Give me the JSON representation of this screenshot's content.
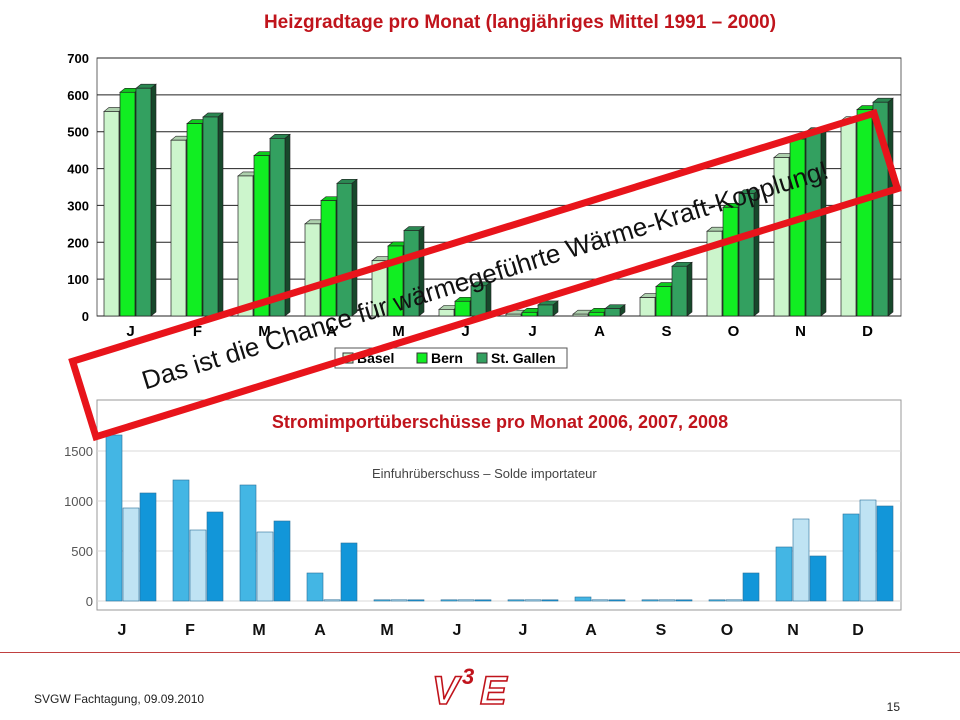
{
  "colors": {
    "title_red": "#c0141c",
    "basel": "#ccf5cc",
    "bern": "#11ee22",
    "stgallen": "#33a060",
    "import_2006": "#43b6e4",
    "import_2007": "#bfe3f3",
    "import_2008": "#1296d9",
    "banner_border": "#e8141b"
  },
  "banner": {
    "text": "Das ist die Chance für wärmegeführte Wärme-Kraft-Kopplung!"
  },
  "footer": {
    "left": "SVGW Fachtagung, 09.09.2010",
    "page": "15",
    "logo_text": "V3E"
  },
  "months_row": [
    "J",
    "F",
    "M",
    "A",
    "M",
    "J",
    "J",
    "A",
    "S",
    "O",
    "N",
    "D"
  ],
  "chart_data": [
    {
      "type": "bar",
      "title": "Heizgradtage pro Monat (langjähriges Mittel 1991 – 2000)",
      "categories": [
        "J",
        "F",
        "M",
        "A",
        "M",
        "J",
        "J",
        "A",
        "S",
        "O",
        "N",
        "D"
      ],
      "yticks": [
        "0",
        "100",
        "200",
        "300",
        "400",
        "500",
        "600",
        "700"
      ],
      "ylim": [
        0,
        700
      ],
      "grid": true,
      "legend_position": "bottom",
      "series": [
        {
          "name": "Basel",
          "values": [
            555,
            477,
            380,
            250,
            150,
            18,
            5,
            5,
            50,
            230,
            430,
            530
          ]
        },
        {
          "name": "Bern",
          "values": [
            607,
            522,
            435,
            313,
            190,
            40,
            10,
            10,
            80,
            295,
            480,
            560
          ]
        },
        {
          "name": "St. Gallen",
          "values": [
            618,
            540,
            482,
            360,
            232,
            82,
            30,
            20,
            135,
            332,
            500,
            580
          ]
        }
      ]
    },
    {
      "type": "bar",
      "title": "Stromimportüberschüsse pro Monat 2006, 2007, 2008",
      "annotation": "Einfuhrüberschuss – Solde importateur",
      "categories": [
        "J",
        "F",
        "M",
        "A",
        "M",
        "J",
        "J",
        "A",
        "S",
        "O",
        "N",
        "D"
      ],
      "yticks": [
        "0",
        "500",
        "1000",
        "1500"
      ],
      "ylim": [
        0,
        1650
      ],
      "grid": true,
      "series": [
        {
          "values": [
            1660,
            1210,
            1160,
            280,
            0,
            0,
            0,
            40,
            0,
            0,
            540,
            870
          ]
        },
        {
          "values": [
            930,
            710,
            690,
            0,
            0,
            0,
            0,
            0,
            0,
            0,
            820,
            1010
          ]
        },
        {
          "values": [
            1080,
            890,
            800,
            580,
            0,
            0,
            0,
            0,
            0,
            280,
            450,
            950
          ]
        }
      ]
    }
  ]
}
